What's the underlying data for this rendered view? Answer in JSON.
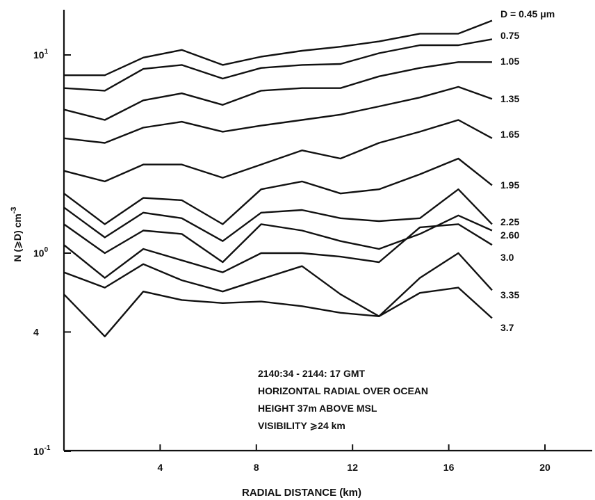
{
  "chart_data": {
    "type": "line",
    "title": "",
    "xlabel": "RADIAL DISTANCE (km)",
    "ylabel_main": "N (⩾D) cm",
    "ylabel_exp": "-3",
    "yscale": "log",
    "xlim": [
      0,
      22
    ],
    "ylim": [
      0.1,
      20
    ],
    "grid": false,
    "x_ticks": [
      {
        "value": 4,
        "label": "4"
      },
      {
        "value": 8,
        "label": "8"
      },
      {
        "value": 12,
        "label": "12"
      },
      {
        "value": 16,
        "label": "16"
      },
      {
        "value": 20,
        "label": "20"
      }
    ],
    "y_ticks": [
      {
        "value": 10,
        "base": "10",
        "exp": "1"
      },
      {
        "value": 1,
        "base": "10",
        "exp": "0"
      },
      {
        "value": 0.4,
        "base": "4",
        "exp": ""
      },
      {
        "value": 0.1,
        "base": "10",
        "exp": "-1"
      }
    ],
    "x": [
      0,
      1.7,
      3.3,
      4.9,
      6.6,
      8.2,
      9.9,
      11.5,
      13.1,
      14.8,
      16.4,
      17.8
    ],
    "series": [
      {
        "label": "D = 0.45 μm",
        "values": [
          7.9,
          7.9,
          9.7,
          10.6,
          8.9,
          9.8,
          10.5,
          11.0,
          11.7,
          12.8,
          12.8,
          14.9
        ]
      },
      {
        "label": "0.75",
        "values": [
          6.8,
          6.6,
          8.5,
          8.9,
          7.6,
          8.6,
          8.9,
          9.0,
          10.2,
          11.2,
          11.2,
          12.0
        ]
      },
      {
        "label": "1.05",
        "values": [
          5.3,
          4.7,
          5.9,
          6.4,
          5.6,
          6.6,
          6.8,
          6.8,
          7.8,
          8.6,
          9.2,
          9.2
        ]
      },
      {
        "label": "1.35",
        "values": [
          3.8,
          3.6,
          4.3,
          4.6,
          4.1,
          4.4,
          4.7,
          5.0,
          5.5,
          6.1,
          6.9,
          6.0
        ]
      },
      {
        "label": "1.65",
        "values": [
          2.6,
          2.3,
          2.8,
          2.8,
          2.4,
          2.8,
          3.3,
          3.0,
          3.6,
          4.1,
          4.7,
          3.8
        ]
      },
      {
        "label": "1.95",
        "values": [
          2.0,
          1.4,
          1.9,
          1.85,
          1.4,
          2.1,
          2.3,
          2.0,
          2.1,
          2.5,
          3.0,
          2.2
        ]
      },
      {
        "label": "2.25",
        "values": [
          1.7,
          1.2,
          1.6,
          1.5,
          1.15,
          1.6,
          1.65,
          1.5,
          1.45,
          1.5,
          2.1,
          1.4
        ]
      },
      {
        "label": "2.60",
        "values": [
          1.4,
          1.0,
          1.3,
          1.25,
          0.9,
          1.4,
          1.3,
          1.15,
          1.05,
          1.25,
          1.55,
          1.3
        ]
      },
      {
        "label": "3.0",
        "values": [
          1.1,
          0.75,
          1.05,
          0.92,
          0.8,
          1.0,
          1.0,
          0.96,
          0.9,
          1.35,
          1.4,
          1.1
        ]
      },
      {
        "label": "3.35",
        "values": [
          0.8,
          0.67,
          0.88,
          0.73,
          0.64,
          0.74,
          0.86,
          0.62,
          0.48,
          0.75,
          1.0,
          0.65
        ]
      },
      {
        "label": "3.7",
        "values": [
          0.62,
          0.38,
          0.64,
          0.58,
          0.56,
          0.57,
          0.54,
          0.5,
          0.48,
          0.63,
          0.67,
          0.47
        ]
      }
    ],
    "annotations": [
      "2140:34 - 2144: 17 GMT",
      "HORIZONTAL RADIAL OVER OCEAN",
      "HEIGHT 37m ABOVE MSL",
      "VISIBILITY ⩾24 km"
    ]
  }
}
